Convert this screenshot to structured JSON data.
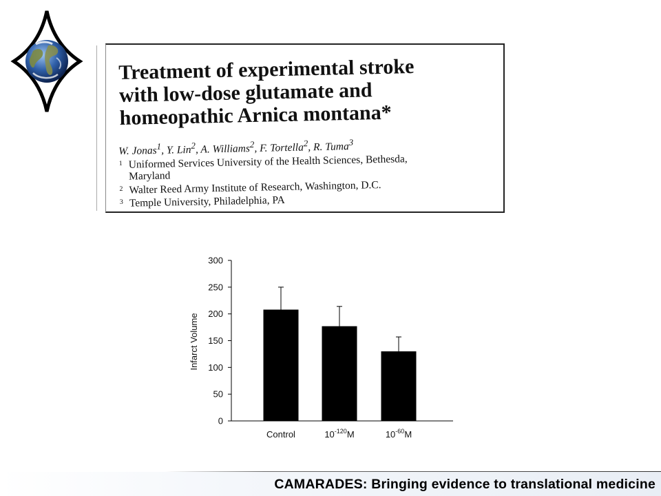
{
  "paper": {
    "title_lines": [
      "Treatment of experimental stroke",
      "with low-dose glutamate and",
      "homeopathic Arnica montana*"
    ],
    "authors": [
      {
        "name": "W. Jonas",
        "sup": "1"
      },
      {
        "name": "Y. Lin",
        "sup": "2"
      },
      {
        "name": "A. Williams",
        "sup": "2"
      },
      {
        "name": "F. Tortella",
        "sup": "2"
      },
      {
        "name": "R. Tuma",
        "sup": "3"
      }
    ],
    "affiliations": [
      {
        "num": "1",
        "lines": [
          "Uniformed Services University of the Health Sciences, Bethesda,",
          "Maryland"
        ]
      },
      {
        "num": "2",
        "lines": [
          "Walter Reed Army Institute of Research, Washington, D.C."
        ]
      },
      {
        "num": "3",
        "lines": [
          "Temple University, Philadelphia, PA"
        ]
      }
    ]
  },
  "chart_data": {
    "type": "bar",
    "categories": [
      {
        "base": "Control",
        "exp": "",
        "unit": ""
      },
      {
        "base": "10",
        "exp": "-120",
        "unit": "M"
      },
      {
        "base": "10",
        "exp": "-60",
        "unit": "M"
      }
    ],
    "values": [
      208,
      177,
      130
    ],
    "error_upper": [
      250,
      214,
      157
    ],
    "ylabel": "Infarct Volume",
    "ylim": [
      0,
      300
    ],
    "yticks": [
      0,
      50,
      100,
      150,
      200,
      250,
      300
    ],
    "bar_color": "#000000",
    "grid": false
  },
  "footer": {
    "text": "CAMARADES:  Bringing evidence to translational medicine"
  },
  "colors": {
    "logo_ocean": "#2f5fa8",
    "logo_land": "#6b7a3c",
    "logo_outline": "#000000"
  }
}
